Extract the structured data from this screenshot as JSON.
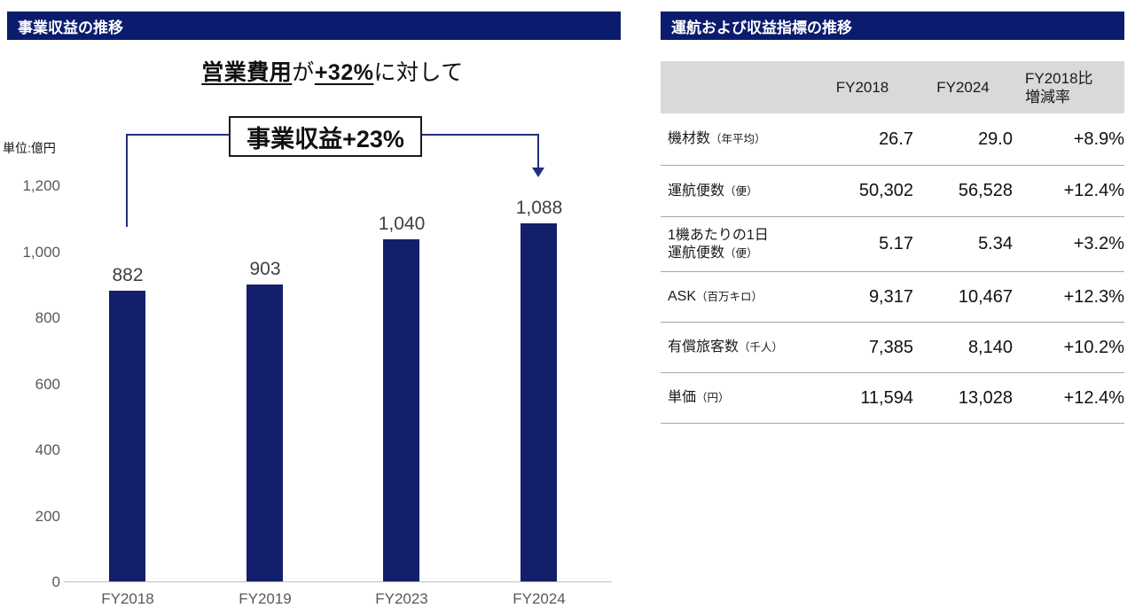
{
  "left_panel": {
    "banner_title": "事業収益の推移",
    "headline": {
      "seg1": "営業費用",
      "seg2": "が",
      "seg3": "+32%",
      "seg4": "に対して"
    },
    "callout": "事業収益+23%",
    "unit_label": "単位:億円"
  },
  "right_panel": {
    "banner_title": "運航および収益指標の推移"
  },
  "colors": {
    "navy_banner": "#0b1c6e",
    "bar": "#131f6b",
    "arrow_line": "#232f7d",
    "table_header_bg": "#d9d9d9",
    "axis_text": "#595959",
    "value_text": "#404040",
    "separator": "#a6a6a6"
  },
  "chart_data": [
    {
      "type": "bar",
      "title": "事業収益の推移",
      "unit": "億円",
      "categories": [
        "FY2018",
        "FY2019",
        "FY2023",
        "FY2024"
      ],
      "values": [
        882,
        903,
        1040,
        1088
      ],
      "value_labels": [
        "882",
        "903",
        "1,040",
        "1,088"
      ],
      "ylim": [
        0,
        1200
      ],
      "yticks": [
        "1,200",
        "1,000",
        "800",
        "600",
        "400",
        "200",
        "0"
      ],
      "annotation": "事業収益+23%",
      "comparison_note": "営業費用が+32%に対して",
      "legend": "none",
      "grid": "off"
    },
    {
      "type": "table",
      "title": "運航および収益指標の推移",
      "columns": [
        "",
        "FY2018",
        "FY2024",
        "FY2018比増減率"
      ],
      "col3_line1": "FY2018比",
      "col3_line2": "増減率",
      "rows": [
        {
          "line1": "",
          "label": "機材数",
          "note": "（年平均）",
          "fy2018": "26.7",
          "fy2024": "29.0",
          "change": "+8.9%"
        },
        {
          "line1": "",
          "label": "運航便数",
          "note": "（便）",
          "fy2018": "50,302",
          "fy2024": "56,528",
          "change": "+12.4%"
        },
        {
          "line1": "1機あたりの1日",
          "label": "運航便数",
          "note": "（便）",
          "fy2018": "5.17",
          "fy2024": "5.34",
          "change": "+3.2%"
        },
        {
          "line1": "",
          "label": "ASK",
          "note": "（百万キロ）",
          "fy2018": "9,317",
          "fy2024": "10,467",
          "change": "+12.3%"
        },
        {
          "line1": "",
          "label": "有償旅客数",
          "note": "（千人）",
          "fy2018": "7,385",
          "fy2024": "8,140",
          "change": "+10.2%"
        },
        {
          "line1": "",
          "label": "単価",
          "note": "（円）",
          "fy2018": "11,594",
          "fy2024": "13,028",
          "change": "+12.4%"
        }
      ]
    }
  ]
}
